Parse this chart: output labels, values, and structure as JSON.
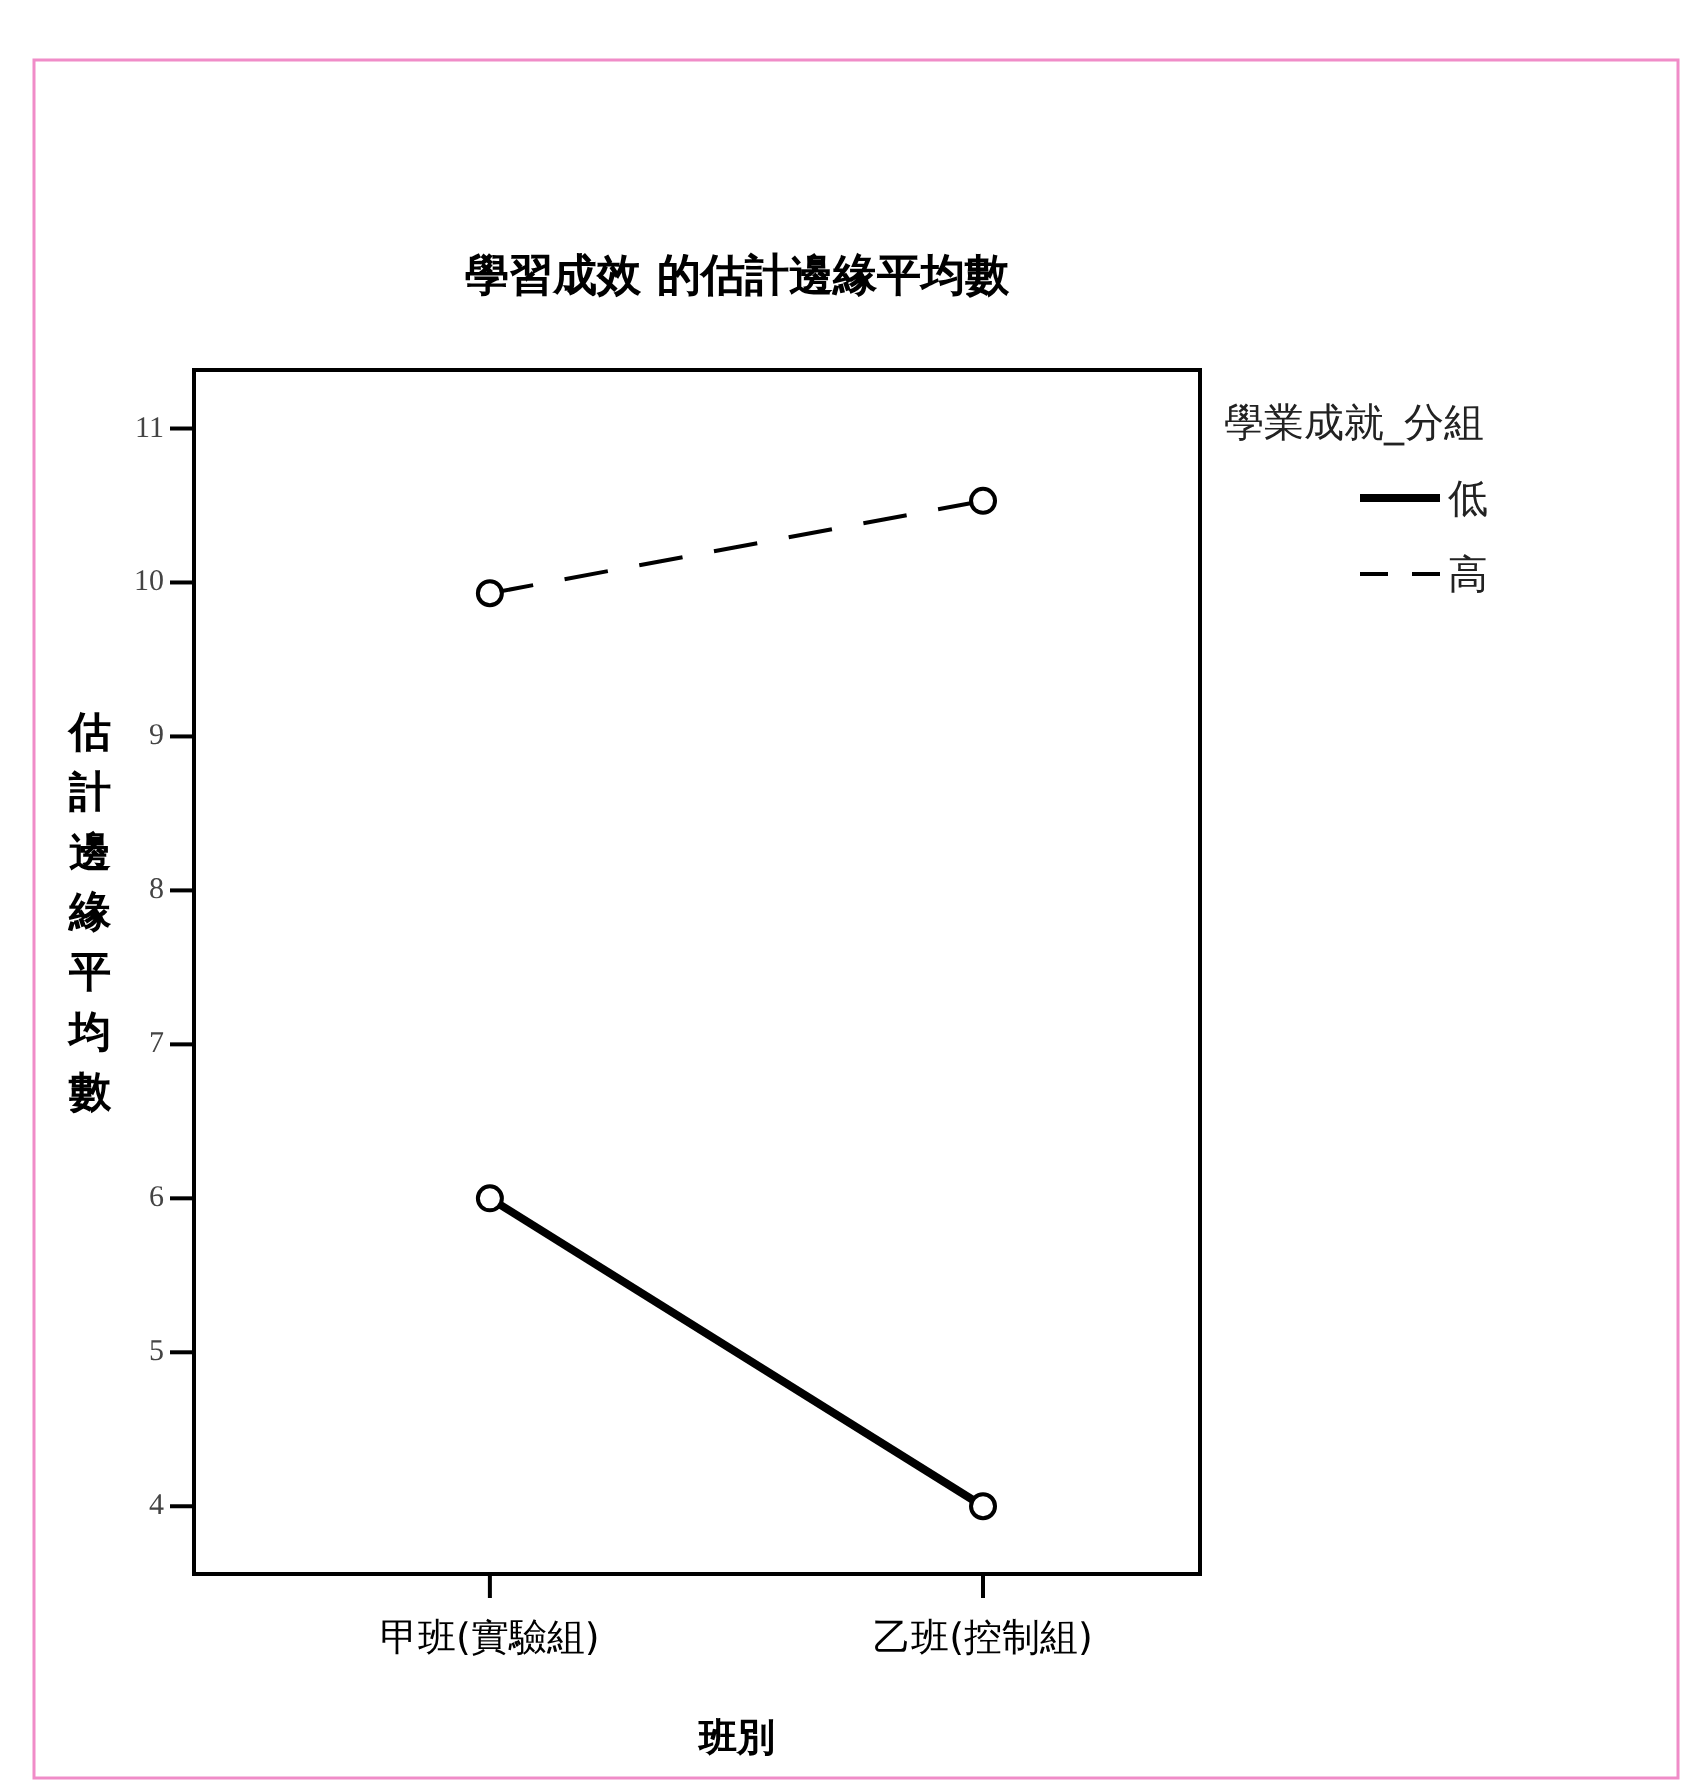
{
  "chart_data": {
    "type": "line",
    "title": "學習成效 的估計邊緣平均數",
    "xlabel": "班別",
    "ylabel": "估計邊緣平均數",
    "legend_title": "學業成就_分組",
    "categories": [
      "甲班(實驗組)",
      "乙班(控制組)"
    ],
    "series": [
      {
        "name": "低",
        "color": "#000000",
        "line_style": "solid",
        "values": [
          6.0,
          4.0
        ]
      },
      {
        "name": "高",
        "color": "#000000",
        "line_style": "dashed",
        "values": [
          9.93,
          10.53
        ]
      }
    ],
    "ylim": [
      3.56,
      11.38
    ],
    "yticks": [
      4,
      5,
      6,
      7,
      8,
      9,
      10,
      11
    ],
    "marker": "circle",
    "grid": false,
    "legend": "top right"
  }
}
